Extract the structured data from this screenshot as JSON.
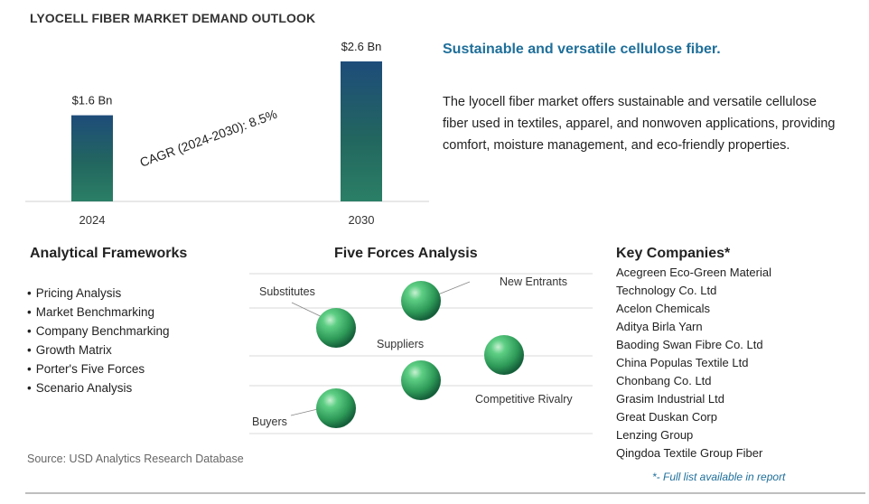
{
  "title": "LYOCELL FIBER MARKET DEMAND OUTLOOK",
  "chart_data": {
    "type": "bar",
    "categories": [
      "2024",
      "2030"
    ],
    "values": [
      1.6,
      2.6
    ],
    "data_labels": [
      "$1.6 Bn",
      "$2.6 Bn"
    ],
    "annotation": "CAGR (2024-2030):  8.5%",
    "title": "",
    "xlabel": "",
    "ylabel": "",
    "ylim": [
      0,
      2.6
    ],
    "grid": false,
    "colors": [
      "#1c5b5a",
      "#2a7a6a",
      "#1e4c7a"
    ]
  },
  "headline": "Sustainable and versatile cellulose fiber.",
  "description": "The lyocell fiber market offers sustainable and versatile cellulose fiber used in textiles, apparel, and nonwoven applications, providing comfort, moisture management, and eco-friendly properties.",
  "frameworks": {
    "title": "Analytical Frameworks",
    "items": [
      "Pricing Analysis",
      "Market Benchmarking",
      "Company Benchmarking",
      "Growth Matrix",
      "Porter's Five Forces",
      "Scenario Analysis"
    ]
  },
  "five_forces": {
    "title": "Five Forces Analysis",
    "labels": [
      "Substitutes",
      "New Entrants",
      "Suppliers",
      "Competitive Rivalry",
      "Buyers"
    ],
    "sphere_color": "#2e9a58"
  },
  "companies": {
    "title": "Key Companies*",
    "items": [
      "Acegreen Eco-Green Material",
      "Technology Co. Ltd",
      "Acelon Chemicals",
      "Aditya Birla Yarn",
      "Baoding Swan Fibre Co. Ltd",
      "China Populas Textile Ltd",
      "Chonbang Co. Ltd",
      "Grasim Industrial Ltd",
      "Great Duskan Corp",
      "Lenzing Group",
      "Qingdoa Textile Group Fiber"
    ],
    "footnote": "*- Full list available in report"
  },
  "source": "Source: USD Analytics Research Database"
}
